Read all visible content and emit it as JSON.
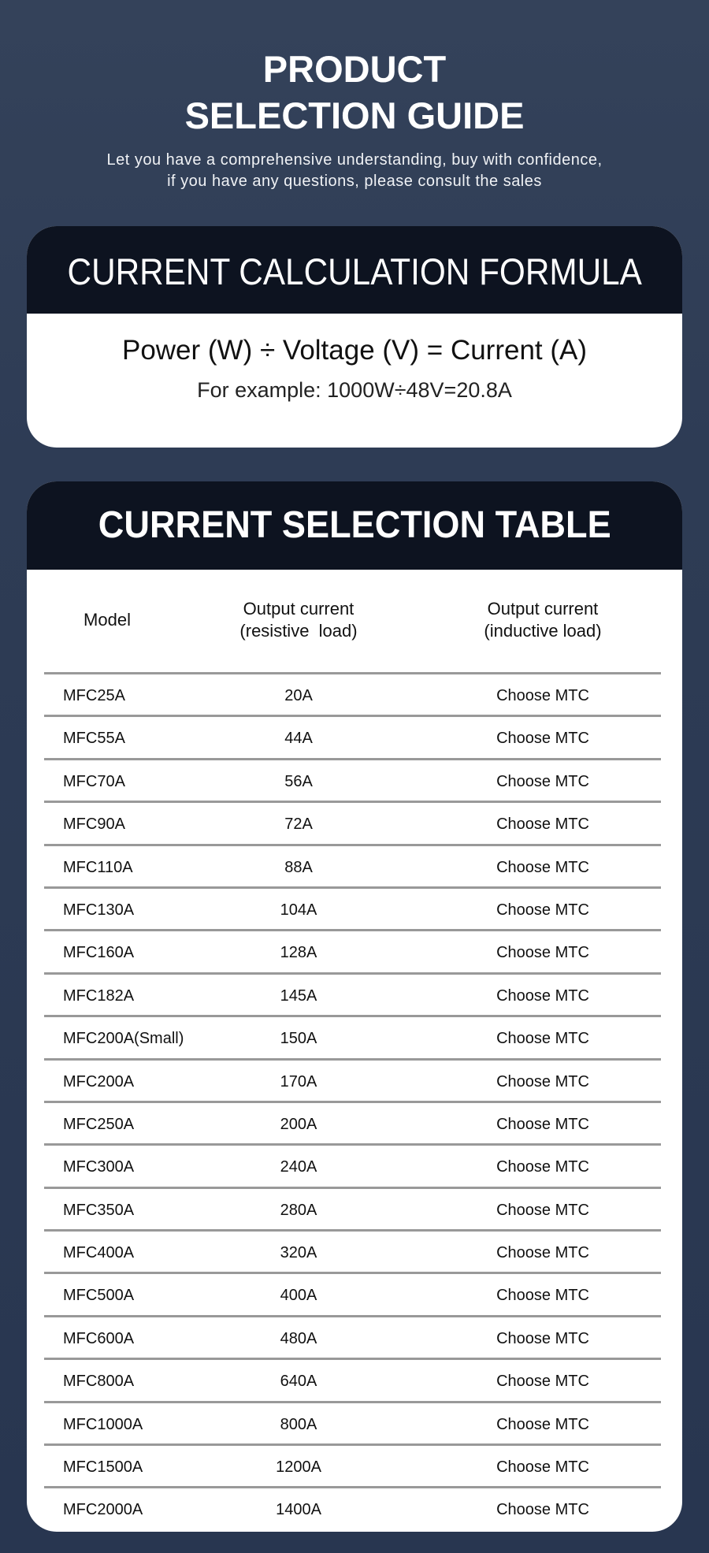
{
  "header": {
    "title_line1": "PRODUCT",
    "title_line2": "SELECTION GUIDE",
    "subtitle_line1": "Let you have a comprehensive understanding, buy with confidence,",
    "subtitle_line2": "if you have any questions, please consult the sales"
  },
  "formula_card": {
    "title": "CURRENT CALCULATION FORMULA",
    "formula": "Power (W) ÷ Voltage (V) = Current (A)",
    "example": "For example: 1000W÷48V=20.8A"
  },
  "table_card": {
    "title": "CURRENT SELECTION TABLE",
    "columns": [
      {
        "line1": "Model",
        "line2": ""
      },
      {
        "line1": "Output current",
        "line2": "(resistive  load)"
      },
      {
        "line1": "Output current",
        "line2": "(inductive load)"
      }
    ],
    "rows": [
      [
        "MFC25A",
        "20A",
        "Choose MTC"
      ],
      [
        "MFC55A",
        "44A",
        "Choose MTC"
      ],
      [
        "MFC70A",
        "56A",
        "Choose MTC"
      ],
      [
        "MFC90A",
        "72A",
        "Choose MTC"
      ],
      [
        "MFC110A",
        "88A",
        "Choose MTC"
      ],
      [
        "MFC130A",
        "104A",
        "Choose MTC"
      ],
      [
        "MFC160A",
        "128A",
        "Choose MTC"
      ],
      [
        "MFC182A",
        "145A",
        "Choose MTC"
      ],
      [
        "MFC200A(Small)",
        "150A",
        "Choose MTC"
      ],
      [
        "MFC200A",
        "170A",
        "Choose MTC"
      ],
      [
        "MFC250A",
        "200A",
        "Choose MTC"
      ],
      [
        "MFC300A",
        "240A",
        "Choose MTC"
      ],
      [
        "MFC350A",
        "280A",
        "Choose MTC"
      ],
      [
        "MFC400A",
        "320A",
        "Choose MTC"
      ],
      [
        "MFC500A",
        "400A",
        "Choose MTC"
      ],
      [
        "MFC600A",
        "480A",
        "Choose MTC"
      ],
      [
        "MFC800A",
        "640A",
        "Choose MTC"
      ],
      [
        "MFC1000A",
        "800A",
        "Choose MTC"
      ],
      [
        "MFC1500A",
        "1200A",
        "Choose MTC"
      ],
      [
        "MFC2000A",
        "1400A",
        "Choose MTC"
      ]
    ]
  }
}
